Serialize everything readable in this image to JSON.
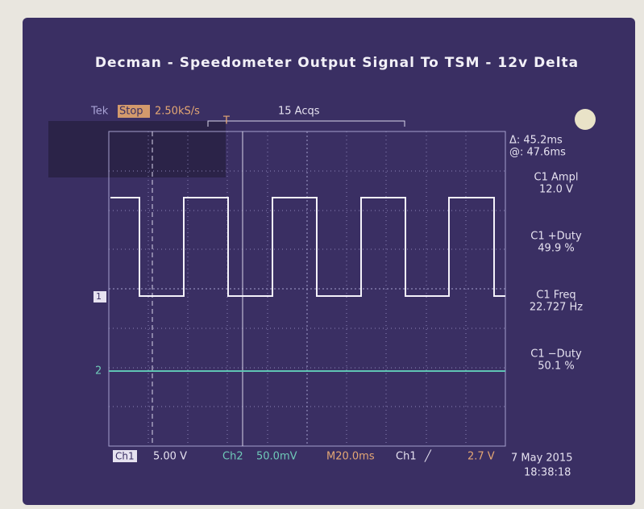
{
  "title": "Decman - Speedometer Output Signal To TSM - 12v Delta",
  "status": {
    "brand": "Tek",
    "state": "Stop",
    "rate": "2.50kS/s",
    "acquisitions": "15 Acqs"
  },
  "cursors": {
    "delta": "Δ: 45.2ms",
    "at": "@: 47.6ms"
  },
  "measurements": [
    {
      "label": "C1 Ampl",
      "value": "12.0 V"
    },
    {
      "label": "C1 +Duty",
      "value": "49.9 %"
    },
    {
      "label": "C1 Freq",
      "value": "22.727 Hz"
    },
    {
      "label": "C1 −Duty",
      "value": "50.1 %"
    }
  ],
  "markers": {
    "ch1": "1",
    "ch2": "2",
    "trigger": "T"
  },
  "footer": {
    "ch1": "Ch1",
    "ch1_scale": "5.00 V",
    "ch2": "Ch2",
    "ch2_scale": "50.0mV",
    "timebase": "M20.0ms",
    "trigger_source": "Ch1",
    "trigger_slope": "╱",
    "trigger_level": "2.7 V",
    "date": "7 May 2015",
    "time": "18:38:18"
  }
}
